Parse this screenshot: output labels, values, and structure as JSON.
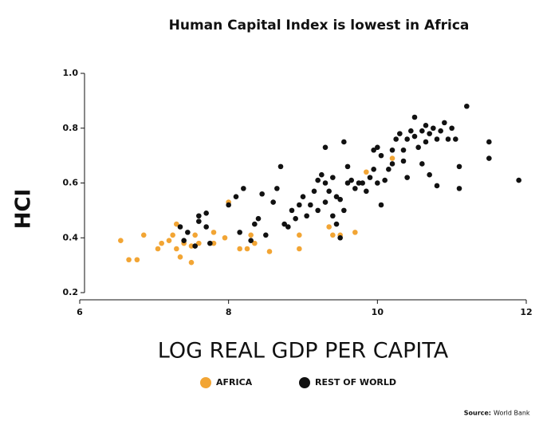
{
  "chart_data": {
    "type": "scatter",
    "title": "Human Capital Index is lowest in Africa",
    "y_label": "HCI",
    "x_label": "LOG REAL GDP PER CAPITA",
    "source_label": "Source:",
    "source_name": "World Bank",
    "xlim": [
      6,
      12
    ],
    "ylim": [
      0.2,
      1.0
    ],
    "xticks": [
      6,
      8,
      10,
      12
    ],
    "yticks": [
      {
        "value": 1.0,
        "label": "1.0"
      },
      0.8,
      0.6,
      0.4,
      0.2
    ],
    "series": [
      {
        "name": "AFRICA",
        "color": "#f2a534",
        "x": [
          6.55,
          6.66,
          6.77,
          6.86,
          7.05,
          7.1,
          7.2,
          7.25,
          7.3,
          7.35,
          7.4,
          7.5,
          7.5,
          7.55,
          7.6,
          7.8,
          7.8,
          7.95,
          8.0,
          8.15,
          8.25,
          8.3,
          8.35,
          8.55,
          8.95,
          8.95,
          9.35,
          9.4,
          9.5,
          9.7,
          9.85,
          10.2,
          7.3
        ],
        "values": [
          0.39,
          0.32,
          0.32,
          0.41,
          0.36,
          0.38,
          0.39,
          0.41,
          0.36,
          0.33,
          0.38,
          0.31,
          0.37,
          0.41,
          0.38,
          0.42,
          0.38,
          0.4,
          0.53,
          0.36,
          0.36,
          0.41,
          0.38,
          0.35,
          0.41,
          0.36,
          0.44,
          0.41,
          0.41,
          0.42,
          0.64,
          0.69,
          0.45
        ]
      },
      {
        "name": "REST OF WORLD",
        "color": "#111111",
        "x": [
          7.35,
          7.4,
          7.45,
          7.55,
          7.6,
          7.7,
          7.75,
          7.6,
          7.7,
          8.0,
          8.1,
          8.2,
          8.15,
          8.3,
          8.35,
          8.4,
          8.5,
          8.45,
          8.6,
          8.7,
          8.75,
          8.8,
          8.85,
          8.9,
          9.0,
          9.05,
          9.1,
          9.15,
          9.2,
          9.2,
          9.25,
          9.3,
          9.3,
          9.35,
          9.4,
          9.4,
          9.45,
          9.5,
          9.5,
          9.55,
          9.6,
          9.6,
          9.65,
          9.7,
          9.55,
          9.3,
          9.45,
          9.8,
          9.85,
          9.9,
          9.95,
          10.0,
          10.05,
          10.05,
          10.1,
          10.15,
          10.2,
          10.25,
          10.3,
          10.35,
          10.4,
          10.4,
          10.45,
          10.5,
          10.5,
          10.55,
          10.6,
          10.6,
          10.65,
          10.65,
          10.7,
          10.7,
          10.75,
          10.8,
          10.8,
          10.85,
          10.9,
          10.95,
          11.0,
          11.05,
          11.1,
          11.1,
          11.2,
          11.5,
          11.5,
          11.9,
          10.2,
          10.35,
          9.75,
          10.0,
          9.95,
          8.65,
          8.95
        ],
        "values": [
          0.44,
          0.39,
          0.42,
          0.37,
          0.46,
          0.44,
          0.38,
          0.48,
          0.49,
          0.52,
          0.55,
          0.58,
          0.42,
          0.39,
          0.45,
          0.47,
          0.41,
          0.56,
          0.53,
          0.66,
          0.45,
          0.44,
          0.5,
          0.47,
          0.55,
          0.48,
          0.52,
          0.57,
          0.61,
          0.5,
          0.63,
          0.6,
          0.53,
          0.57,
          0.48,
          0.62,
          0.45,
          0.4,
          0.54,
          0.5,
          0.6,
          0.66,
          0.61,
          0.58,
          0.75,
          0.73,
          0.55,
          0.6,
          0.57,
          0.62,
          0.72,
          0.73,
          0.7,
          0.52,
          0.61,
          0.65,
          0.72,
          0.76,
          0.78,
          0.72,
          0.62,
          0.76,
          0.79,
          0.84,
          0.77,
          0.73,
          0.79,
          0.67,
          0.81,
          0.75,
          0.78,
          0.63,
          0.8,
          0.76,
          0.59,
          0.79,
          0.82,
          0.76,
          0.8,
          0.76,
          0.66,
          0.58,
          0.88,
          0.75,
          0.69,
          0.61,
          0.67,
          0.68,
          0.6,
          0.6,
          0.65,
          0.58,
          0.52
        ]
      }
    ]
  }
}
